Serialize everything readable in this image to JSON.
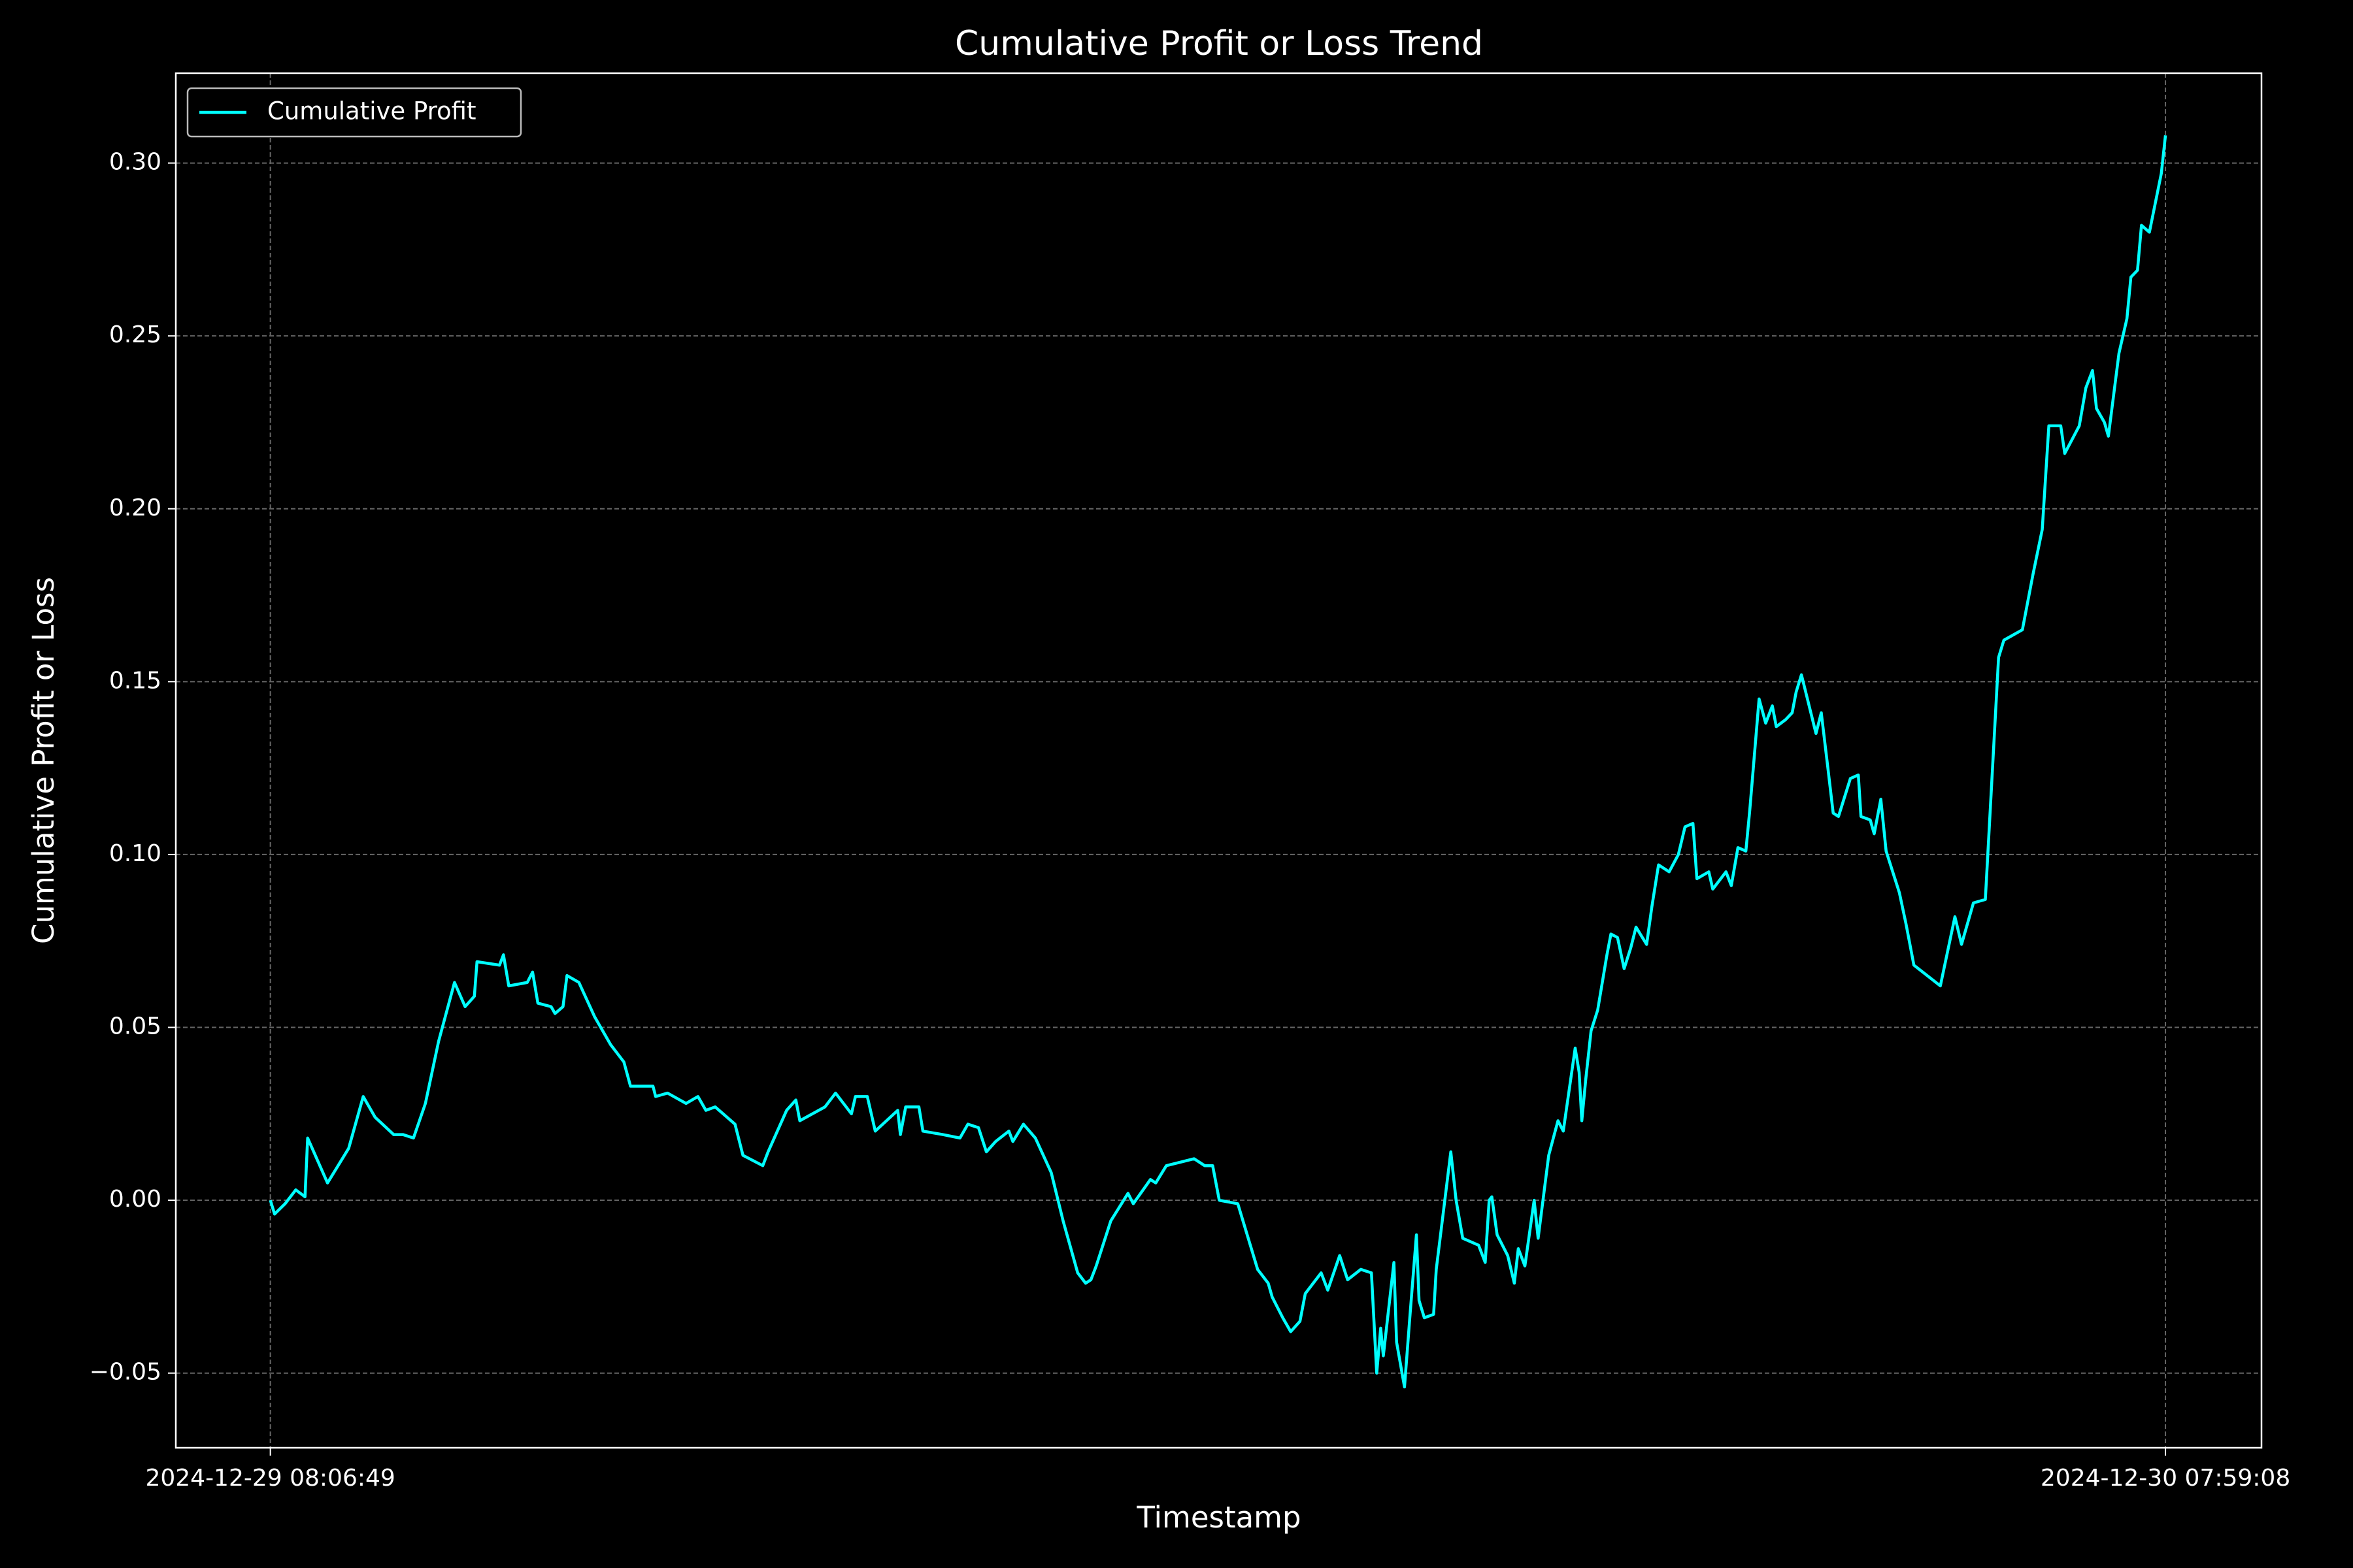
{
  "chart_data": {
    "type": "line",
    "title": "Cumulative Profit or Loss Trend",
    "x_label": "Timestamp",
    "y_label": "Cumulative Profit or Loss",
    "x": [
      "2024-12-29 08:06:49",
      "2024-12-29 08:10:00",
      "2024-12-29 08:18:00",
      "2024-12-29 08:26:00",
      "2024-12-29 08:33:00",
      "2024-12-29 08:35:00",
      "2024-12-29 08:50:00",
      "2024-12-29 08:58:00",
      "2024-12-29 09:06:00",
      "2024-12-29 09:17:00",
      "2024-12-29 09:26:00",
      "2024-12-29 09:40:00",
      "2024-12-29 09:47:00",
      "2024-12-29 09:55:00",
      "2024-12-29 10:04:00",
      "2024-12-29 10:14:00",
      "2024-12-29 10:26:00",
      "2024-12-29 10:34:00",
      "2024-12-29 10:41:00",
      "2024-12-29 10:43:00",
      "2024-12-29 11:00:00",
      "2024-12-29 11:03:00",
      "2024-12-29 11:07:00",
      "2024-12-29 11:21:00",
      "2024-12-29 11:25:00",
      "2024-12-29 11:29:00",
      "2024-12-29 11:39:00",
      "2024-12-29 11:42:00",
      "2024-12-29 11:48:00",
      "2024-12-29 11:51:00",
      "2024-12-29 12:00:00",
      "2024-12-29 12:12:00",
      "2024-12-29 12:24:00",
      "2024-12-29 12:34:00",
      "2024-12-29 12:39:00",
      "2024-12-29 12:56:00",
      "2024-12-29 12:58:00",
      "2024-12-29 13:07:00",
      "2024-12-29 13:21:00",
      "2024-12-29 13:30:00",
      "2024-12-29 13:36:00",
      "2024-12-29 13:43:00",
      "2024-12-29 13:58:00",
      "2024-12-29 14:04:00",
      "2024-12-29 14:19:00",
      "2024-12-29 14:23:00",
      "2024-12-29 14:37:00",
      "2024-12-29 14:44:00",
      "2024-12-29 14:47:00",
      "2024-12-29 15:06:00",
      "2024-12-29 15:14:00",
      "2024-12-29 15:26:00",
      "2024-12-29 15:29:00",
      "2024-12-29 15:38:00",
      "2024-12-29 15:44:00",
      "2024-12-29 16:01:00",
      "2024-12-29 16:03:00",
      "2024-12-29 16:07:00",
      "2024-12-29 16:17:00",
      "2024-12-29 16:20:00",
      "2024-12-29 16:35:00",
      "2024-12-29 16:48:00",
      "2024-12-29 16:54:00",
      "2024-12-29 17:02:00",
      "2024-12-29 17:08:00",
      "2024-12-29 17:15:00",
      "2024-12-29 17:25:00",
      "2024-12-29 17:28:00",
      "2024-12-29 17:36:00",
      "2024-12-29 17:45:00",
      "2024-12-29 17:57:00",
      "2024-12-29 18:06:00",
      "2024-12-29 18:17:00",
      "2024-12-29 18:23:00",
      "2024-12-29 18:27:00",
      "2024-12-29 18:31:00",
      "2024-12-29 18:42:00",
      "2024-12-29 18:55:00",
      "2024-12-29 18:59:00",
      "2024-12-29 19:12:00",
      "2024-12-29 19:16:00",
      "2024-12-29 19:24:00",
      "2024-12-29 19:45:00",
      "2024-12-29 19:53:00",
      "2024-12-29 19:59:00",
      "2024-12-29 20:04:00",
      "2024-12-29 20:18:00",
      "2024-12-29 20:33:00",
      "2024-12-29 20:41:00",
      "2024-12-29 20:44:00",
      "2024-12-29 20:52:00",
      "2024-12-29 20:58:00",
      "2024-12-29 21:05:00",
      "2024-12-29 21:09:00",
      "2024-12-29 21:21:00",
      "2024-12-29 21:26:00",
      "2024-12-29 21:35:00",
      "2024-12-29 21:41:00",
      "2024-12-29 21:51:00",
      "2024-12-29 21:59:00",
      "2024-12-29 22:03:00",
      "2024-12-29 22:06:00",
      "2024-12-29 22:08:00",
      "2024-12-29 22:16:00",
      "2024-12-29 22:18:00",
      "2024-12-29 22:24:00",
      "2024-12-29 22:28:00",
      "2024-12-29 22:33:00",
      "2024-12-29 22:35:00",
      "2024-12-29 22:39:00",
      "2024-12-29 22:46:00",
      "2024-12-29 22:48:00",
      "2024-12-29 22:59:00",
      "2024-12-29 23:03:00",
      "2024-12-29 23:08:00",
      "2024-12-29 23:20:00",
      "2024-12-29 23:25:00",
      "2024-12-29 23:28:00",
      "2024-12-29 23:30:00",
      "2024-12-29 23:34:00",
      "2024-12-29 23:42:00",
      "2024-12-29 23:47:00",
      "2024-12-29 23:50:00",
      "2024-12-29 23:55:00",
      "2024-12-30 00:02:00",
      "2024-12-30 00:05:00",
      "2024-12-30 00:13:00",
      "2024-12-30 00:20:00",
      "2024-12-30 00:24:00",
      "2024-12-30 00:33:00",
      "2024-12-30 00:36:00",
      "2024-12-30 00:38:00",
      "2024-12-30 00:41:00",
      "2024-12-30 00:45:00",
      "2024-12-30 00:50:00",
      "2024-12-30 00:57:00",
      "2024-12-30 01:00:00",
      "2024-12-30 01:05:00",
      "2024-12-30 01:10:00",
      "2024-12-30 01:15:00",
      "2024-12-30 01:19:00",
      "2024-12-30 01:27:00",
      "2024-12-30 01:31:00",
      "2024-12-30 01:36:00",
      "2024-12-30 01:44:00",
      "2024-12-30 01:51:00",
      "2024-12-30 01:56:00",
      "2024-12-30 02:02:00",
      "2024-12-30 02:05:00",
      "2024-12-30 02:14:00",
      "2024-12-30 02:17:00",
      "2024-12-30 02:27:00",
      "2024-12-30 02:31:00",
      "2024-12-30 02:36:00",
      "2024-12-30 02:42:00",
      "2024-12-30 02:45:00",
      "2024-12-30 02:52:00",
      "2024-12-30 02:57:00",
      "2024-12-30 03:02:00",
      "2024-12-30 03:05:00",
      "2024-12-30 03:12:00",
      "2024-12-30 03:17:00",
      "2024-12-30 03:20:00",
      "2024-12-30 03:24:00",
      "2024-12-30 03:35:00",
      "2024-12-30 03:39:00",
      "2024-12-30 03:44:00",
      "2024-12-30 03:48:00",
      "2024-12-30 03:52:00",
      "2024-12-30 04:01:00",
      "2024-12-30 04:07:00",
      "2024-12-30 04:09:00",
      "2024-12-30 04:16:00",
      "2024-12-30 04:19:00",
      "2024-12-30 04:24:00",
      "2024-12-30 04:28:00",
      "2024-12-30 04:38:00",
      "2024-12-30 04:43:00",
      "2024-12-30 04:49:00",
      "2024-12-30 05:09:00",
      "2024-12-30 05:20:00",
      "2024-12-30 05:25:00",
      "2024-12-30 05:34:00",
      "2024-12-30 05:43:00",
      "2024-12-30 05:53:00",
      "2024-12-30 05:57:00",
      "2024-12-30 06:11:00",
      "2024-12-30 06:19:00",
      "2024-12-30 06:26:00",
      "2024-12-30 06:31:00",
      "2024-12-30 06:40:00",
      "2024-12-30 06:43:00",
      "2024-12-30 06:54:00",
      "2024-12-30 06:59:00",
      "2024-12-30 07:04:00",
      "2024-12-30 07:07:00",
      "2024-12-30 07:13:00",
      "2024-12-30 07:16:00",
      "2024-12-30 07:24:00",
      "2024-12-30 07:30:00",
      "2024-12-30 07:33:00",
      "2024-12-30 07:38:00",
      "2024-12-30 07:41:00",
      "2024-12-30 07:47:00",
      "2024-12-30 07:56:00",
      "2024-12-30 07:59:08"
    ],
    "series": [
      {
        "name": "Cumulative Profit",
        "color": "#00ffff",
        "values": [
          0,
          -0.004,
          -0.001,
          0.003,
          0.001,
          0.018,
          0.005,
          0.01,
          0.015,
          0.03,
          0.024,
          0.019,
          0.019,
          0.018,
          0.028,
          0.046,
          0.063,
          0.056,
          0.059,
          0.069,
          0.068,
          0.071,
          0.062,
          0.063,
          0.066,
          0.057,
          0.056,
          0.054,
          0.056,
          0.065,
          0.063,
          0.053,
          0.045,
          0.04,
          0.033,
          0.033,
          0.03,
          0.031,
          0.028,
          0.03,
          0.026,
          0.027,
          0.022,
          0.013,
          0.01,
          0.014,
          0.026,
          0.029,
          0.023,
          0.027,
          0.031,
          0.025,
          0.03,
          0.03,
          0.02,
          0.026,
          0.019,
          0.027,
          0.027,
          0.02,
          0.019,
          0.018,
          0.022,
          0.021,
          0.014,
          0.017,
          0.02,
          0.017,
          0.022,
          0.018,
          0.008,
          -0.006,
          -0.021,
          -0.024,
          -0.023,
          -0.019,
          -0.006,
          0.002,
          -0.001,
          0.006,
          0.005,
          0.01,
          0.012,
          0.01,
          0.01,
          0.0,
          -0.001,
          -0.02,
          -0.024,
          -0.028,
          -0.034,
          -0.038,
          -0.035,
          -0.027,
          -0.021,
          -0.026,
          -0.016,
          -0.023,
          -0.02,
          -0.021,
          -0.05,
          -0.037,
          -0.045,
          -0.018,
          -0.041,
          -0.054,
          -0.034,
          -0.01,
          -0.029,
          -0.034,
          -0.033,
          -0.02,
          0.014,
          0.0,
          -0.011,
          -0.013,
          -0.018,
          0.0,
          0.001,
          -0.01,
          -0.016,
          -0.024,
          -0.014,
          -0.019,
          0.0,
          -0.011,
          0.013,
          0.023,
          0.02,
          0.044,
          0.037,
          0.023,
          0.035,
          0.049,
          0.055,
          0.071,
          0.077,
          0.076,
          0.067,
          0.073,
          0.079,
          0.074,
          0.085,
          0.097,
          0.095,
          0.1,
          0.108,
          0.109,
          0.093,
          0.095,
          0.09,
          0.095,
          0.091,
          0.102,
          0.101,
          0.113,
          0.145,
          0.138,
          0.143,
          0.137,
          0.139,
          0.141,
          0.147,
          0.152,
          0.135,
          0.141,
          0.125,
          0.112,
          0.111,
          0.122,
          0.123,
          0.111,
          0.11,
          0.106,
          0.116,
          0.101,
          0.089,
          0.08,
          0.068,
          0.062,
          0.082,
          0.074,
          0.086,
          0.087,
          0.157,
          0.162,
          0.165,
          0.181,
          0.194,
          0.224,
          0.224,
          0.216,
          0.224,
          0.235,
          0.24,
          0.229,
          0.225,
          0.221,
          0.245,
          0.255,
          0.267,
          0.269,
          0.282,
          0.28,
          0.297,
          0.308
        ]
      }
    ],
    "xlim": [
      "2024-12-29 06:55:22",
      "2024-12-30 09:11:43"
    ],
    "xticks": [
      "2024-12-29 08:06:49",
      "2024-12-30 07:59:08"
    ],
    "ylim": [
      -0.0716,
      0.326
    ],
    "yticks": [
      {
        "value": -0.05,
        "label": "−0.05"
      },
      {
        "value": 0,
        "label": "0.00"
      },
      0.05,
      {
        "value": 0.1,
        "label": "0.10"
      },
      0.15,
      {
        "value": 0.2,
        "label": "0.20"
      },
      0.25,
      {
        "value": 0.3,
        "label": "0.30"
      }
    ],
    "grid": true,
    "legend": "upper left"
  }
}
